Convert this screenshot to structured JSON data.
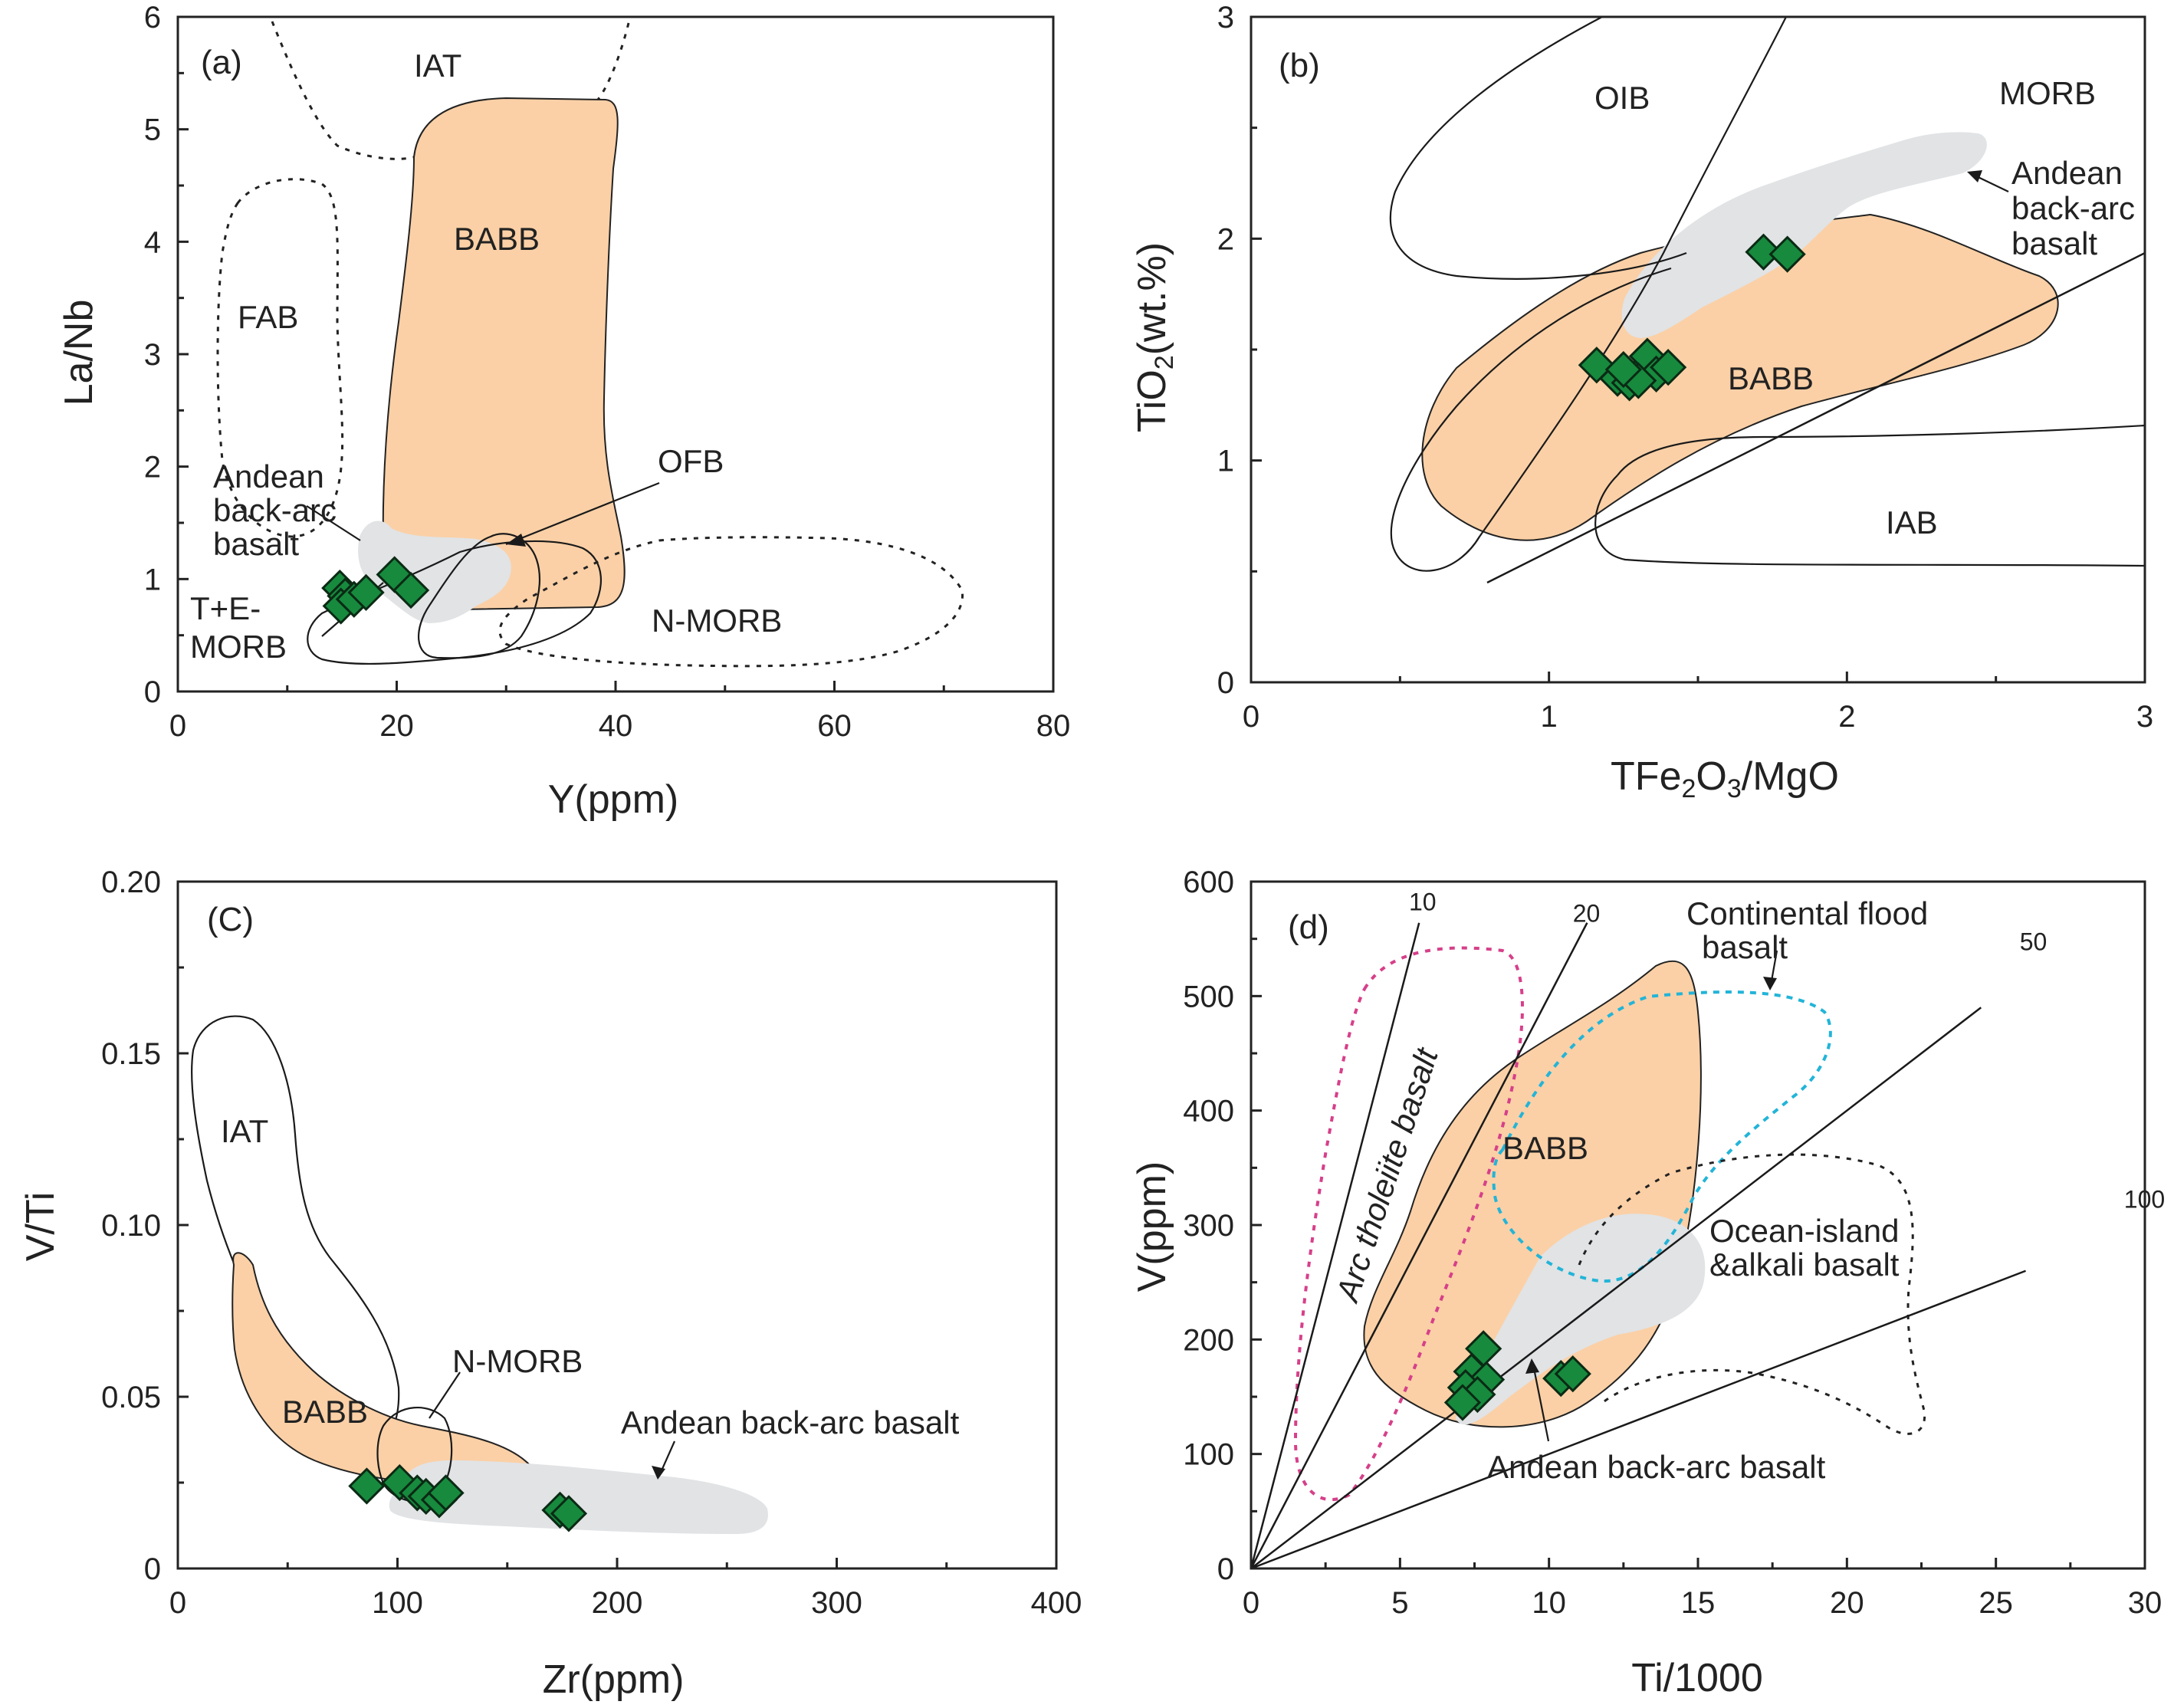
{
  "colors": {
    "babb_fill": "#fbd0a6",
    "andean_fill": "#e1e3e5",
    "sample_fill": "#178a3e",
    "sample_stroke": "#0b2a14",
    "cfb_outline": "#23b4d8",
    "arc_outline": "#d6408a"
  },
  "chart_data": [
    {
      "panel": "(a)",
      "type": "scatter",
      "xlabel": "Y(ppm)",
      "ylabel": "La/Nb",
      "xlim": [
        0,
        80
      ],
      "ylim": [
        0,
        6
      ],
      "xticks": [
        0,
        20,
        40,
        60,
        80
      ],
      "yticks": [
        0,
        1,
        2,
        3,
        4,
        5,
        6
      ],
      "regions": [
        "IAT",
        "BABB",
        "FAB",
        "OFB",
        "N-MORB",
        "Andean back-arc basalt",
        "T+E-MORB"
      ],
      "labels": {
        "iat": "IAT",
        "babb": "BABB",
        "fab": "FAB",
        "ofb": "OFB",
        "nmorb": "N-MORB",
        "andean": [
          "Andean",
          "back-arc",
          "basalt"
        ],
        "temorb": [
          "T+E-",
          "MORB"
        ]
      },
      "points": [
        [
          14.8,
          0.92
        ],
        [
          15.3,
          0.85
        ],
        [
          14.9,
          0.76
        ],
        [
          16.1,
          0.82
        ],
        [
          17.2,
          0.88
        ],
        [
          19.8,
          1.04
        ],
        [
          21.3,
          0.9
        ]
      ]
    },
    {
      "panel": "(b)",
      "type": "scatter",
      "xlabel": "TFe₂O₃/MgO",
      "ylabel": "TiO₂(wt.%)",
      "xlim": [
        0,
        3
      ],
      "ylim": [
        0,
        3
      ],
      "xticks": [
        0,
        1,
        2,
        3
      ],
      "yticks": [
        0,
        1,
        2,
        3
      ],
      "regions": [
        "OIB",
        "MORB",
        "Andean back-arc basalt",
        "BABB",
        "IAB"
      ],
      "labels": {
        "oib": "OIB",
        "morb": "MORB",
        "babb": "BABB",
        "iab": "IAB",
        "andean": [
          "Andean",
          "back-arc",
          "basalt"
        ]
      },
      "points": [
        [
          1.72,
          1.94
        ],
        [
          1.8,
          1.93
        ],
        [
          1.16,
          1.43
        ],
        [
          1.23,
          1.37
        ],
        [
          1.27,
          1.35
        ],
        [
          1.31,
          1.4
        ],
        [
          1.33,
          1.47
        ],
        [
          1.36,
          1.39
        ],
        [
          1.4,
          1.42
        ],
        [
          1.3,
          1.36
        ],
        [
          1.25,
          1.41
        ]
      ]
    },
    {
      "panel": "(C)",
      "type": "scatter",
      "xlabel": "Zr(ppm)",
      "ylabel": "V/Ti",
      "xlim": [
        0,
        400
      ],
      "ylim": [
        0,
        0.2
      ],
      "xticks": [
        0,
        100,
        200,
        300,
        400
      ],
      "yticks": [
        0,
        0.05,
        0.1,
        0.15,
        0.2
      ],
      "ytick_labels": [
        "0",
        "0.05",
        "0.10",
        "0.15",
        "0.20"
      ],
      "regions": [
        "IAT",
        "BABB",
        "N-MORB",
        "Andean back-arc basalt"
      ],
      "labels": {
        "iat": "IAT",
        "babb": "BABB",
        "nmorb": "N-MORB",
        "andean": "Andean back-arc basalt"
      },
      "points": [
        [
          86,
          0.024
        ],
        [
          101,
          0.025
        ],
        [
          109,
          0.022
        ],
        [
          113,
          0.021
        ],
        [
          119,
          0.02
        ],
        [
          122,
          0.022
        ],
        [
          174,
          0.017
        ],
        [
          178,
          0.016
        ]
      ]
    },
    {
      "panel": "(d)",
      "type": "scatter",
      "xlabel": "Ti/1000",
      "ylabel": "V(ppm)",
      "xlim": [
        0,
        30
      ],
      "ylim": [
        0,
        600
      ],
      "xticks": [
        0,
        5,
        10,
        15,
        20,
        25,
        30
      ],
      "yticks": [
        0,
        100,
        200,
        300,
        400,
        500,
        600
      ],
      "ratio_lines": [
        10,
        20,
        50,
        100
      ],
      "ratio_labels": [
        "10",
        "20",
        "50",
        "100"
      ],
      "regions": [
        "Arc tholeiite basalt",
        "Continental flood basalt",
        "BABB",
        "Ocean-island &alkali basalt",
        "Andean back-arc basalt"
      ],
      "labels": {
        "arc": "Arc  tholeiite basalt",
        "cfb": [
          "Continental flood",
          "basalt"
        ],
        "babb": "BABB",
        "oib": [
          "Ocean-island",
          "&alkali basalt"
        ],
        "andean": "Andean back-arc basalt"
      },
      "points": [
        [
          7.8,
          192
        ],
        [
          7.4,
          172
        ],
        [
          7.9,
          165
        ],
        [
          7.2,
          158
        ],
        [
          7.6,
          152
        ],
        [
          7.1,
          145
        ],
        [
          10.4,
          166
        ],
        [
          10.8,
          170
        ]
      ]
    }
  ]
}
